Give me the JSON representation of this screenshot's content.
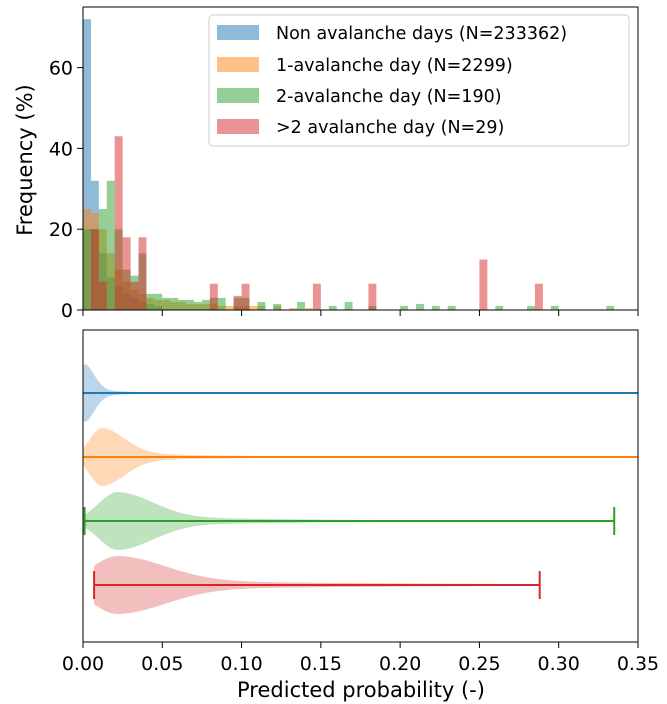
{
  "chart_data": [
    {
      "type": "bar",
      "subtype": "overlaid-histogram",
      "ylabel": "Frequency (%)",
      "xlim": [
        0,
        0.35
      ],
      "ylim": [
        0,
        75
      ],
      "yticks": [
        0,
        20,
        40,
        60
      ],
      "bin_width": 0.005,
      "series": [
        {
          "name": "Non avalanche days (N=233362)",
          "color": "#1f77b4",
          "bin_starts": [
            0.0,
            0.005,
            0.01,
            0.015,
            0.02,
            0.025,
            0.03,
            0.035,
            0.04,
            0.045
          ],
          "values": [
            72,
            32,
            14,
            8,
            6,
            4,
            3,
            2,
            1.5,
            1
          ]
        },
        {
          "name": "1-avalanche day (N=2299)",
          "color": "#ff7f0e",
          "bin_starts": [
            0.0,
            0.005,
            0.01,
            0.015,
            0.02,
            0.025,
            0.03,
            0.035,
            0.04,
            0.045,
            0.05,
            0.055,
            0.06,
            0.065,
            0.07,
            0.075,
            0.08,
            0.085,
            0.09,
            0.095,
            0.1,
            0.105,
            0.11,
            0.12,
            0.13,
            0.14
          ],
          "values": [
            25,
            24,
            20,
            14,
            10,
            7,
            5,
            4,
            3,
            2.5,
            2.5,
            2,
            2,
            1.5,
            1.5,
            1.5,
            1.5,
            1,
            1,
            1,
            1,
            1,
            1,
            1,
            0.5,
            0.5
          ]
        },
        {
          "name": "2-avalanche day (N=190)",
          "color": "#2ca02c",
          "bin_starts": [
            0.0,
            0.005,
            0.01,
            0.015,
            0.02,
            0.025,
            0.03,
            0.035,
            0.04,
            0.045,
            0.05,
            0.055,
            0.06,
            0.065,
            0.07,
            0.075,
            0.08,
            0.085,
            0.095,
            0.1,
            0.11,
            0.12,
            0.135,
            0.155,
            0.165,
            0.18,
            0.2,
            0.21,
            0.22,
            0.23,
            0.26,
            0.28,
            0.295,
            0.33
          ],
          "values": [
            20,
            20,
            25,
            32,
            20,
            10,
            8.5,
            14,
            4,
            4,
            3,
            3,
            2.5,
            2.5,
            2,
            2.5,
            3,
            3,
            3,
            3,
            2,
            1.5,
            2,
            1,
            2,
            1,
            1,
            1.5,
            1,
            1,
            1,
            1,
            1,
            1
          ]
        },
        {
          "name": ">2 avalanche day (N=29)",
          "color": "#d62728",
          "bin_starts": [
            0.005,
            0.01,
            0.02,
            0.025,
            0.03,
            0.035,
            0.08,
            0.095,
            0.1,
            0.145,
            0.18,
            0.25,
            0.285
          ],
          "values": [
            20,
            7,
            43,
            18,
            7,
            18,
            6.5,
            3.5,
            6.5,
            6.5,
            6.5,
            12.5,
            6.5
          ]
        }
      ],
      "legend": {
        "location": "top-right",
        "entries": [
          "Non avalanche days (N=233362)",
          "1-avalanche day (N=2299)",
          "2-avalanche day (N=190)",
          ">2 avalanche day (N=29)"
        ]
      }
    },
    {
      "type": "violin",
      "xlabel": "Predicted probability (-)",
      "xlim": [
        0,
        0.35
      ],
      "xticks": [
        "0.00",
        "0.05",
        "0.10",
        "0.15",
        "0.20",
        "0.25",
        "0.30",
        "0.35"
      ],
      "series": [
        {
          "color": "#1f77b4",
          "min": 0.0,
          "max": 0.35,
          "mode": 0.001,
          "spread": 0.006,
          "tail": 0.02,
          "end_caps": false
        },
        {
          "color": "#ff7f0e",
          "min": 0.0,
          "max": 0.35,
          "mode": 0.012,
          "spread": 0.014,
          "tail": 0.06,
          "end_caps": false
        },
        {
          "color": "#2ca02c",
          "min": 0.001,
          "max": 0.335,
          "mode": 0.022,
          "spread": 0.022,
          "tail": 0.1,
          "end_caps": true
        },
        {
          "color": "#d62728",
          "min": 0.007,
          "max": 0.288,
          "mode": 0.022,
          "spread": 0.03,
          "tail": 0.15,
          "end_caps": true
        }
      ]
    }
  ]
}
